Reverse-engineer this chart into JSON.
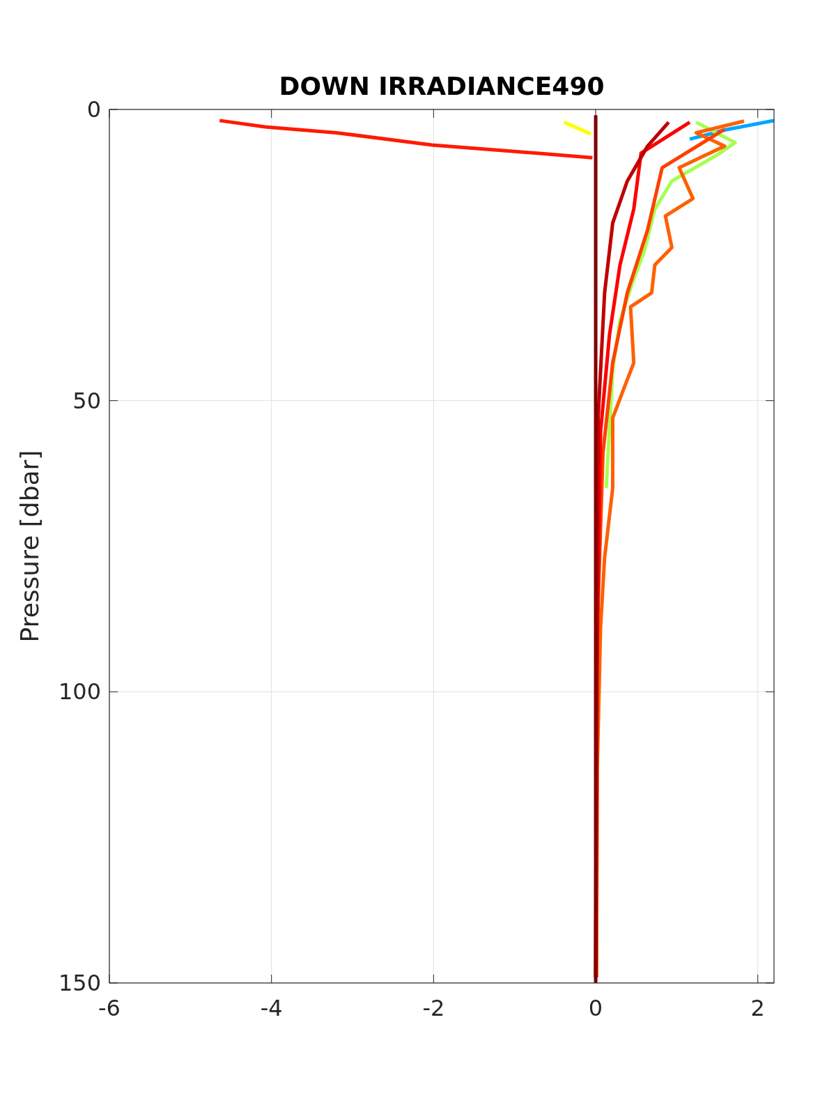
{
  "chart_data": {
    "type": "line",
    "title": "DOWN IRRADIANCE490",
    "ylabel": "Pressure [dbar]",
    "xlim": [
      -6,
      2.2
    ],
    "ylim": [
      150,
      0
    ],
    "xticks": [
      -6,
      -4,
      -2,
      0,
      2
    ],
    "yticks": [
      0,
      50,
      100,
      150
    ],
    "grid": true,
    "marker": "none",
    "line_style": "solid",
    "series": [
      {
        "color": "#00a6ff",
        "x": [
          2.2,
          1.6,
          1.16
        ],
        "values": [
          1.9,
          3.5,
          5.1
        ]
      },
      {
        "color": "#a6ff4d",
        "x": [
          1.24,
          1.72,
          1.5,
          0.94,
          0.73,
          0.6,
          0.47,
          0.3,
          0.21,
          0.13
        ],
        "values": [
          2.2,
          5.7,
          7.8,
          12.3,
          17.1,
          24.3,
          29.1,
          36.3,
          44.7,
          65
        ]
      },
      {
        "color": "#ffff00",
        "x": [
          -0.39,
          -0.06
        ],
        "values": [
          2.2,
          4.2
        ]
      },
      {
        "color": "#ff6000",
        "x": [
          1.83,
          1.24,
          1.59,
          1.03,
          1.2,
          0.86,
          0.94,
          0.73,
          0.69,
          0.43,
          0.47,
          0.34,
          0.21,
          0.21,
          0.11,
          0.06,
          0.02,
          0.01
        ],
        "values": [
          2,
          4,
          6.3,
          10,
          15.3,
          18.3,
          23.7,
          26.7,
          31.5,
          33.9,
          43.5,
          48.2,
          53,
          65,
          77,
          89,
          113,
          149
        ]
      },
      {
        "color": "#ff4000",
        "x": [
          1.59,
          0.82,
          0.64,
          0.39,
          0.21,
          0.09,
          0.02,
          0.01
        ],
        "values": [
          3.4,
          10,
          20.7,
          31.5,
          43.5,
          59,
          89,
          149
        ]
      },
      {
        "color": "#ff0000",
        "x": [
          1.16,
          0.56,
          0.47,
          0.3,
          0.17,
          0.06,
          0.01,
          0
        ],
        "values": [
          2.2,
          7.5,
          17.1,
          26.7,
          38.7,
          55.4,
          101,
          149
        ]
      },
      {
        "color": "#c00000",
        "x": [
          0.9,
          0.64,
          0.39,
          0.21,
          0.11,
          0.03,
          0
        ],
        "values": [
          2.2,
          6.3,
          12.3,
          19.5,
          31.5,
          53,
          149
        ]
      },
      {
        "color": "#ff1a00",
        "x": [
          -4.64,
          -4.08,
          -3.2,
          -2.02,
          -1,
          -0.04
        ],
        "values": [
          1.9,
          3,
          4,
          6.1,
          7.2,
          8.3
        ]
      },
      {
        "color": "#800000",
        "x": [
          0,
          0
        ],
        "values": [
          1,
          150
        ]
      }
    ]
  }
}
